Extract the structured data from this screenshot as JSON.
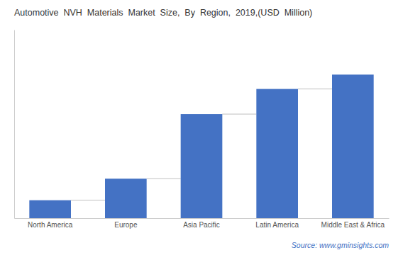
{
  "chart_data": {
    "type": "bar",
    "title": "Automotive  NVH  Materials  Market  Size,  By  Region,  2019,(USD  Million)",
    "categories": [
      "North America",
      "Europe",
      "Asia Pacific",
      "Latin America",
      "Middle East & Africa"
    ],
    "values": [
      1.0,
      2.2,
      5.8,
      7.2,
      8.0
    ],
    "color": "#4472C4",
    "ylim": [
      0,
      10.5
    ],
    "tick_labels": "x",
    "grid": false,
    "annotations": [
      "Source: www.gminsights.com"
    ]
  }
}
